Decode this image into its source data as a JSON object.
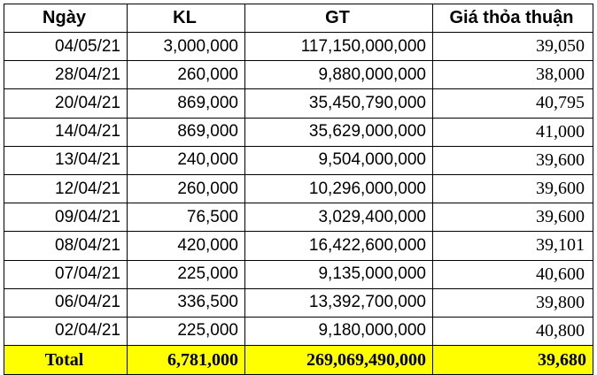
{
  "table": {
    "headers": [
      "Ngày",
      "KL",
      "GT",
      "Giá thỏa thuận"
    ],
    "rows": [
      [
        "04/05/21",
        "3,000,000",
        "117,150,000,000",
        "39,050"
      ],
      [
        "28/04/21",
        "260,000",
        "9,880,000,000",
        "38,000"
      ],
      [
        "20/04/21",
        "869,000",
        "35,450,790,000",
        "40,795"
      ],
      [
        "14/04/21",
        "869,000",
        "35,629,000,000",
        "41,000"
      ],
      [
        "13/04/21",
        "240,000",
        "9,504,000,000",
        "39,600"
      ],
      [
        "12/04/21",
        "260,000",
        "10,296,000,000",
        "39,600"
      ],
      [
        "09/04/21",
        "76,500",
        "3,029,400,000",
        "39,600"
      ],
      [
        "08/04/21",
        "420,000",
        "16,422,600,000",
        "39,101"
      ],
      [
        "07/04/21",
        "225,000",
        "9,135,000,000",
        "40,600"
      ],
      [
        "06/04/21",
        "336,500",
        "13,392,700,000",
        "39,800"
      ],
      [
        "02/04/21",
        "225,000",
        "9,180,000,000",
        "40,800"
      ]
    ],
    "total": [
      "Total",
      "6,781,000",
      "269,069,490,000",
      "39,680"
    ],
    "total_highlight_color": "#ffff00"
  }
}
